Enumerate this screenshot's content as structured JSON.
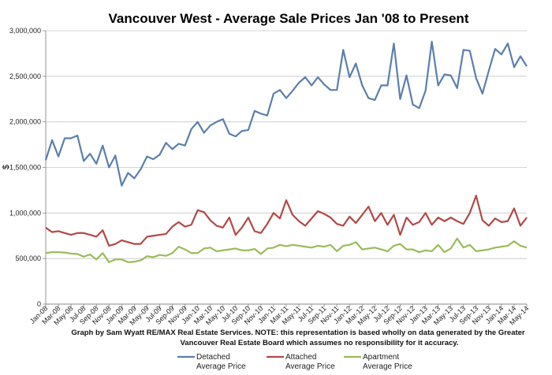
{
  "chart_data": {
    "type": "line",
    "title": "Vancouver West - Average Sale Prices Jan '08 to Present",
    "xlabel": "",
    "ylabel": "$",
    "ylim": [
      0,
      3000000
    ],
    "yticks": [
      0,
      500000,
      1000000,
      1500000,
      2000000,
      2500000,
      3000000
    ],
    "ytick_labels": [
      "0",
      "500,000",
      "1,000,000",
      "1,500,000",
      "2,000,000",
      "2,500,000",
      "3,000,000"
    ],
    "x_tick_labels": [
      "Jan-08",
      "Mar-08",
      "May-08",
      "Jul-08",
      "Sep-08",
      "Nov-08",
      "Jan-09",
      "Mar-09",
      "May-09",
      "Jul-09",
      "Sep-09",
      "Nov-09",
      "Jan-10",
      "Mar-10",
      "May-10",
      "Jul-10",
      "Sep-10",
      "Nov-10",
      "Jan-11",
      "Mar-11",
      "May-11",
      "Jul-11",
      "Sep-11",
      "Nov-11",
      "Jan-12",
      "Mar-12",
      "May-12",
      "Jul-12",
      "Sep-12",
      "Nov-12",
      "Jan-13",
      "Mar-13",
      "May-13",
      "Jul-13",
      "Sep-13",
      "Nov-13",
      "Jan-14",
      "Mar-14",
      "May-14"
    ],
    "grid": true,
    "series": [
      {
        "name": "Detached Average Price",
        "legend_line1": "Detached",
        "legend_line2": "Average Price",
        "color": "#5b7fad",
        "values": [
          1580000,
          1800000,
          1620000,
          1820000,
          1820000,
          1850000,
          1570000,
          1650000,
          1540000,
          1740000,
          1500000,
          1630000,
          1300000,
          1440000,
          1380000,
          1480000,
          1620000,
          1590000,
          1640000,
          1770000,
          1700000,
          1760000,
          1740000,
          1920000,
          2000000,
          1880000,
          1960000,
          2000000,
          2030000,
          1870000,
          1840000,
          1900000,
          1910000,
          2120000,
          2090000,
          2070000,
          2310000,
          2350000,
          2260000,
          2340000,
          2430000,
          2490000,
          2400000,
          2490000,
          2410000,
          2350000,
          2350000,
          2790000,
          2490000,
          2640000,
          2400000,
          2260000,
          2240000,
          2400000,
          2400000,
          2860000,
          2250000,
          2510000,
          2190000,
          2150000,
          2340000,
          2880000,
          2400000,
          2520000,
          2510000,
          2370000,
          2790000,
          2780000,
          2480000,
          2310000,
          2560000,
          2800000,
          2740000,
          2860000,
          2600000,
          2720000,
          2610000
        ]
      },
      {
        "name": "Attached Average Price",
        "legend_line1": "Attached",
        "legend_line2": "Average Price",
        "color": "#b14a46",
        "values": [
          840000,
          790000,
          800000,
          780000,
          760000,
          780000,
          780000,
          760000,
          740000,
          810000,
          640000,
          660000,
          700000,
          680000,
          660000,
          660000,
          740000,
          750000,
          760000,
          770000,
          850000,
          900000,
          850000,
          870000,
          1030000,
          1010000,
          920000,
          860000,
          840000,
          950000,
          760000,
          840000,
          950000,
          800000,
          780000,
          880000,
          1000000,
          940000,
          1140000,
          980000,
          910000,
          860000,
          940000,
          1020000,
          990000,
          950000,
          880000,
          860000,
          960000,
          890000,
          980000,
          1070000,
          910000,
          1000000,
          870000,
          980000,
          760000,
          950000,
          870000,
          900000,
          1000000,
          870000,
          950000,
          910000,
          950000,
          910000,
          880000,
          1000000,
          1190000,
          920000,
          860000,
          940000,
          900000,
          910000,
          1050000,
          860000,
          950000
        ]
      },
      {
        "name": "Apartment Average Price",
        "legend_line1": "Apartment",
        "legend_line2": "Average Price",
        "color": "#9bbb59",
        "values": [
          560000,
          570000,
          570000,
          565000,
          555000,
          550000,
          520000,
          545000,
          490000,
          560000,
          460000,
          490000,
          490000,
          460000,
          465000,
          480000,
          525000,
          515000,
          540000,
          530000,
          560000,
          630000,
          600000,
          560000,
          560000,
          610000,
          620000,
          580000,
          590000,
          600000,
          610000,
          590000,
          590000,
          605000,
          550000,
          610000,
          620000,
          650000,
          635000,
          650000,
          640000,
          630000,
          620000,
          640000,
          630000,
          650000,
          580000,
          640000,
          650000,
          680000,
          600000,
          610000,
          620000,
          600000,
          580000,
          640000,
          660000,
          600000,
          600000,
          570000,
          590000,
          580000,
          650000,
          570000,
          610000,
          720000,
          620000,
          650000,
          580000,
          590000,
          600000,
          620000,
          630000,
          640000,
          690000,
          640000,
          620000
        ]
      }
    ]
  },
  "footnote": {
    "line1": "Graph by Sam Wyatt RE/MAX Real Estate Services.   NOTE: this representation is based wholly on data generated by the Greater",
    "line2": "Vancouver Real Estate Board which assumes no responsibility for it accuracy."
  }
}
